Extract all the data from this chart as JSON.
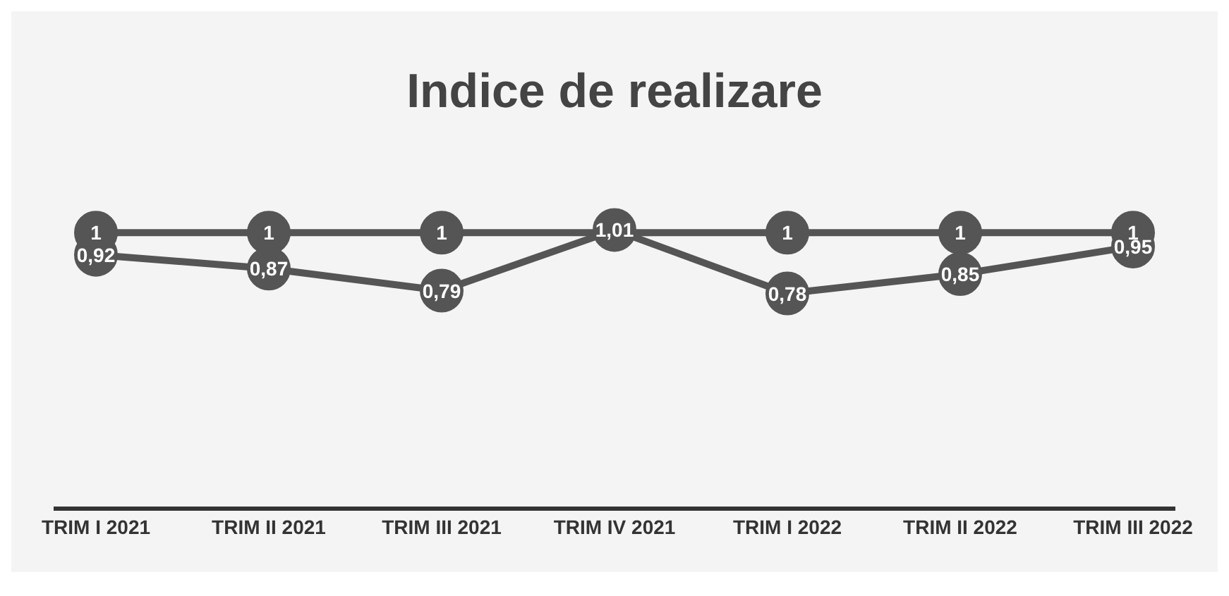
{
  "chart_data": {
    "type": "line",
    "title": "Indice de realizare",
    "categories": [
      "TRIM I 2021",
      "TRIM II 2021",
      "TRIM III 2021",
      "TRIM IV 2021",
      "TRIM I 2022",
      "TRIM II 2022",
      "TRIM III 2022"
    ],
    "series": [
      {
        "color": "#555555",
        "values": [
          1,
          1,
          1,
          null,
          1,
          1,
          1
        ],
        "value_labels": [
          "1",
          "1",
          "1",
          null,
          "1",
          "1",
          "1"
        ]
      },
      {
        "color": "#555555",
        "values": [
          0.92,
          0.87,
          0.79,
          1.01,
          0.78,
          0.85,
          0.95
        ],
        "value_labels": [
          "0,92",
          "0,87",
          "0,79",
          "1,01",
          "0,78",
          "0,85",
          "0,95"
        ]
      }
    ],
    "tick_labels": "x",
    "legend": false,
    "marker": "circle",
    "line_style": "solid"
  }
}
